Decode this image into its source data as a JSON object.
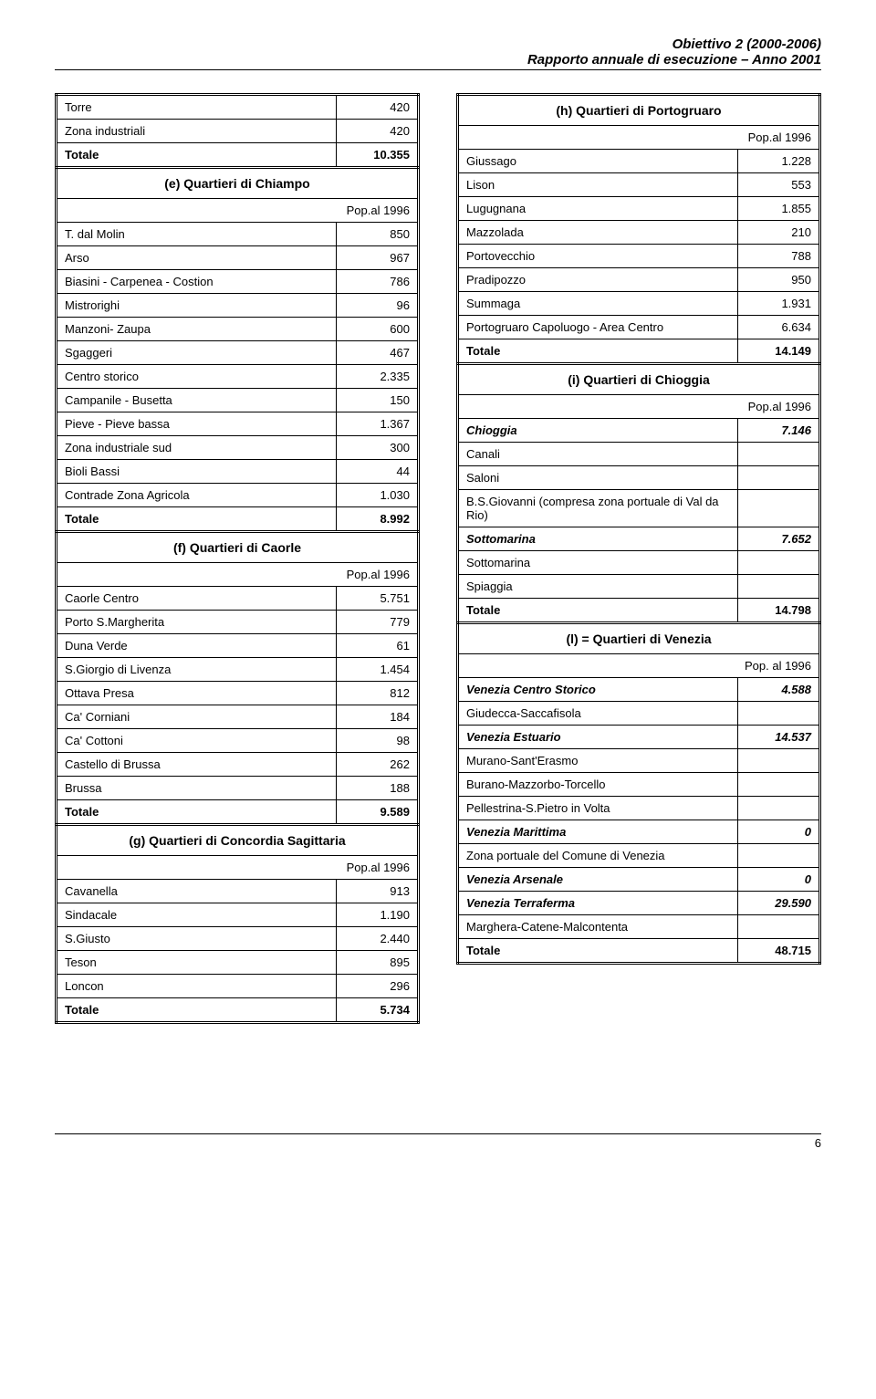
{
  "header": {
    "line1": "Obiettivo 2 (2000-2006)",
    "line2": "Rapporto annuale di esecuzione – Anno 2001"
  },
  "pop_label": "Pop.al 1996",
  "pop_label_alt": "Pop. al 1996",
  "left": {
    "intro_rows": [
      {
        "label": "Torre",
        "val": "420"
      },
      {
        "label": "Zona industriali",
        "val": "420"
      },
      {
        "label": "Totale",
        "val": "10.355",
        "bold": true
      }
    ],
    "e_title": "(e) Quartieri di Chiampo",
    "e_rows": [
      {
        "label": "T. dal Molin",
        "val": "850"
      },
      {
        "label": "Arso",
        "val": "967"
      },
      {
        "label": "Biasini - Carpenea - Costion",
        "val": "786"
      },
      {
        "label": "Mistrorighi",
        "val": "96"
      },
      {
        "label": "Manzoni- Zaupa",
        "val": "600"
      },
      {
        "label": "Sgaggeri",
        "val": "467"
      },
      {
        "label": "Centro storico",
        "val": "2.335"
      },
      {
        "label": "Campanile - Busetta",
        "val": "150"
      },
      {
        "label": "Pieve - Pieve bassa",
        "val": "1.367"
      },
      {
        "label": "Zona industriale sud",
        "val": "300"
      },
      {
        "label": "Bioli Bassi",
        "val": "44"
      },
      {
        "label": "Contrade Zona Agricola",
        "val": "1.030"
      },
      {
        "label": "Totale",
        "val": "8.992",
        "bold": true
      }
    ],
    "f_title": "(f) Quartieri di Caorle",
    "f_rows": [
      {
        "label": "Caorle Centro",
        "val": "5.751"
      },
      {
        "label": "Porto S.Margherita",
        "val": "779"
      },
      {
        "label": "Duna Verde",
        "val": "61"
      },
      {
        "label": "S.Giorgio di Livenza",
        "val": "1.454"
      },
      {
        "label": "Ottava Presa",
        "val": "812"
      },
      {
        "label": "Ca' Corniani",
        "val": "184"
      },
      {
        "label": "Ca' Cottoni",
        "val": "98"
      },
      {
        "label": "Castello di Brussa",
        "val": "262"
      },
      {
        "label": "Brussa",
        "val": "188"
      },
      {
        "label": "Totale",
        "val": "9.589",
        "bold": true
      }
    ],
    "g_title": "(g) Quartieri di Concordia Sagittaria",
    "g_rows": [
      {
        "label": "Cavanella",
        "val": "913"
      },
      {
        "label": "Sindacale",
        "val": "1.190"
      },
      {
        "label": "S.Giusto",
        "val": "2.440"
      },
      {
        "label": "Teson",
        "val": "895"
      },
      {
        "label": "Loncon",
        "val": "296"
      },
      {
        "label": "Totale",
        "val": "5.734",
        "bold": true
      }
    ]
  },
  "right": {
    "h_title": "(h) Quartieri di Portogruaro",
    "h_rows": [
      {
        "label": "Giussago",
        "val": "1.228"
      },
      {
        "label": "Lison",
        "val": "553"
      },
      {
        "label": "Lugugnana",
        "val": "1.855"
      },
      {
        "label": "Mazzolada",
        "val": "210"
      },
      {
        "label": "Portovecchio",
        "val": "788"
      },
      {
        "label": "Pradipozzo",
        "val": "950"
      },
      {
        "label": "Summaga",
        "val": "1.931"
      },
      {
        "label": "Portogruaro Capoluogo - Area Centro",
        "val": "6.634"
      },
      {
        "label": "Totale",
        "val": "14.149",
        "bold": true
      }
    ],
    "i_title": "(i) Quartieri di Chioggia",
    "i_rows": [
      {
        "label": "Chioggia",
        "val": "7.146",
        "bold": true,
        "italic": true
      },
      {
        "label": "Canali",
        "val": ""
      },
      {
        "label": "Saloni",
        "val": ""
      },
      {
        "label": "B.S.Giovanni (compresa zona portuale di Val da Rio)",
        "val": ""
      },
      {
        "label": "Sottomarina",
        "val": "7.652",
        "bold": true,
        "italic": true
      },
      {
        "label": "Sottomarina",
        "val": ""
      },
      {
        "label": "Spiaggia",
        "val": ""
      },
      {
        "label": "Totale",
        "val": "14.798",
        "bold": true
      }
    ],
    "l_title": "(l) = Quartieri di Venezia",
    "l_rows": [
      {
        "label": "Venezia Centro Storico",
        "val": "4.588",
        "bold": true,
        "italic": true
      },
      {
        "label": "Giudecca-Saccafisola",
        "val": ""
      },
      {
        "label": "Venezia Estuario",
        "val": "14.537",
        "bold": true,
        "italic": true
      },
      {
        "label": "Murano-Sant'Erasmo",
        "val": ""
      },
      {
        "label": "Burano-Mazzorbo-Torcello",
        "val": ""
      },
      {
        "label": "Pellestrina-S.Pietro in Volta",
        "val": ""
      },
      {
        "label": "Venezia Marittima",
        "val": "0",
        "bold": true,
        "italic": true
      },
      {
        "label": "Zona portuale del Comune di Venezia",
        "val": ""
      },
      {
        "label": "Venezia Arsenale",
        "val": "0",
        "bold": true,
        "italic": true
      },
      {
        "label": "Venezia Terraferma",
        "val": "29.590",
        "bold": true,
        "italic": true
      },
      {
        "label": "Marghera-Catene-Malcontenta",
        "val": ""
      },
      {
        "label": "Totale",
        "val": "48.715",
        "bold": true
      }
    ]
  },
  "footer": {
    "page": "6"
  }
}
